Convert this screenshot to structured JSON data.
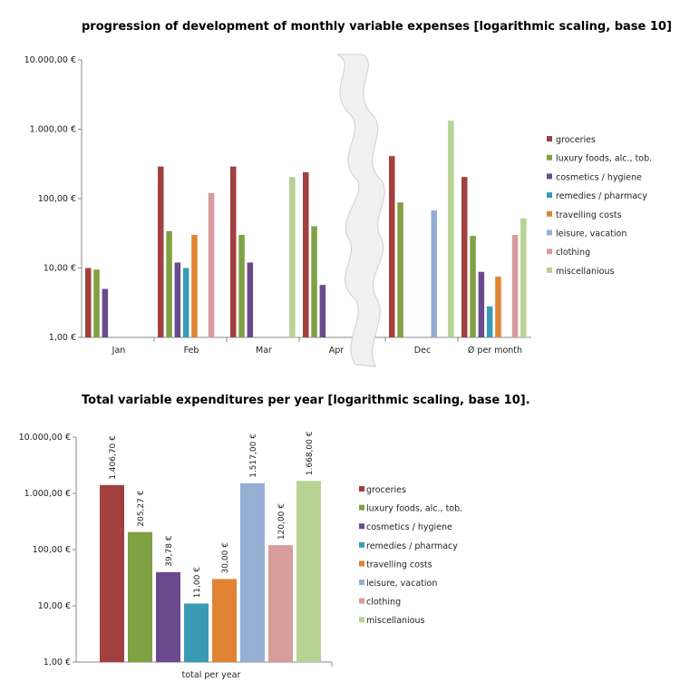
{
  "colors": {
    "groceries": "#a0403f",
    "luxury": "#80a044",
    "cosmetics": "#6a4a8c",
    "remedies": "#3a9ab4",
    "travelling": "#e08434",
    "leisure": "#95aed4",
    "clothing": "#d89c9c",
    "misc": "#b8d294"
  },
  "chart_data": [
    {
      "type": "bar",
      "scale": "log10",
      "title": "progression of development of monthly variable expenses [logarithmic scaling, base 10]",
      "categories": [
        "Jan",
        "Feb",
        "Mar",
        "Apr",
        "Dec",
        "Ø per month"
      ],
      "y_ticks": [
        "1,00 €",
        "10,00 €",
        "100,00 €",
        "1.000,00 €",
        "10.000,00 €"
      ],
      "ylim": [
        1,
        10000
      ],
      "legend_position": "right",
      "series": [
        {
          "name": "groceries",
          "color_key": "groceries",
          "values": [
            10,
            290,
            290,
            240,
            410,
            205
          ]
        },
        {
          "name": "luxury foods, alc., tob.",
          "color_key": "luxury",
          "values": [
            9.5,
            34,
            30,
            40,
            88,
            29
          ]
        },
        {
          "name": "cosmetics / hygiene",
          "color_key": "cosmetics",
          "values": [
            5,
            12,
            12,
            5.7,
            null,
            8.8
          ]
        },
        {
          "name": "remedies / pharmacy",
          "color_key": "remedies",
          "values": [
            null,
            10,
            null,
            null,
            null,
            2.8
          ]
        },
        {
          "name": "travelling costs",
          "color_key": "travelling",
          "values": [
            null,
            30,
            null,
            null,
            null,
            7.5
          ]
        },
        {
          "name": "leisure, vacation",
          "color_key": "leisure",
          "values": [
            null,
            null,
            null,
            null,
            68,
            null
          ]
        },
        {
          "name": "clothing",
          "color_key": "clothing",
          "values": [
            null,
            120,
            null,
            null,
            null,
            30
          ]
        },
        {
          "name": "miscellanious",
          "color_key": "misc",
          "values": [
            null,
            null,
            205,
            null,
            1330,
            52
          ]
        }
      ]
    },
    {
      "type": "bar",
      "scale": "log10",
      "title": "Total variable expenditures per year [logarithmic scaling, base 10].",
      "categories": [
        "total per year"
      ],
      "y_ticks": [
        "1,00 €",
        "10,00 €",
        "100,00 €",
        "1.000,00 €",
        "10.000,00 €"
      ],
      "ylim": [
        1,
        10000
      ],
      "legend_position": "right",
      "series": [
        {
          "name": "groceries",
          "color_key": "groceries",
          "value": 1406.7,
          "label": "1.406,70 €"
        },
        {
          "name": "luxury foods, alc., tob.",
          "color_key": "luxury",
          "value": 205.27,
          "label": "205,27 €"
        },
        {
          "name": "cosmetics / hygiene",
          "color_key": "cosmetics",
          "value": 39.78,
          "label": "39,78 €"
        },
        {
          "name": "remedies / pharmacy",
          "color_key": "remedies",
          "value": 11.0,
          "label": "11,00 €"
        },
        {
          "name": "travelling costs",
          "color_key": "travelling",
          "value": 30.0,
          "label": "30,00 €"
        },
        {
          "name": "leisure, vacation",
          "color_key": "leisure",
          "value": 1517.0,
          "label": "1.517,00 €"
        },
        {
          "name": "clothing",
          "color_key": "clothing",
          "value": 120.0,
          "label": "120,00 €"
        },
        {
          "name": "miscellanious",
          "color_key": "misc",
          "value": 1668.0,
          "label": "1.668,00 €"
        }
      ]
    }
  ]
}
